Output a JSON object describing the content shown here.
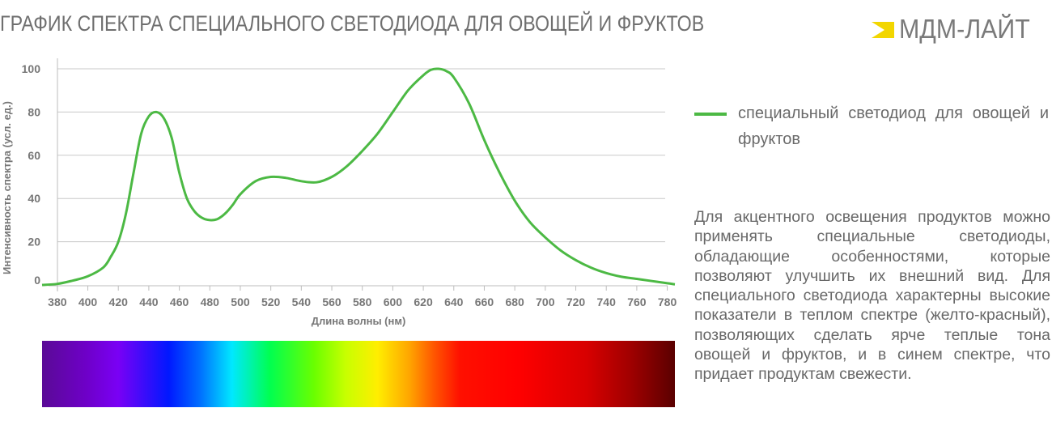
{
  "header": {
    "title": "ГРАФИК СПЕКТРА СПЕЦИАЛЬНОГО СВЕТОДИОДА ДЛЯ ОВОЩЕЙ И ФРУКТОВ",
    "logo_text": "МДМ-ЛАЙТ",
    "logo_icon": "mdm-light-logo-mark",
    "logo_color": "#f2d600"
  },
  "legend": {
    "label": "специальный светодиод  для овощей и фруктов",
    "color": "#4cb944"
  },
  "description": "Для акцентного освещения продуктов можно применять специальные светодиоды, обладающие особенностями, которые позволяют улучшить их внешний вид. Для специального светодиода характерны высокие показатели в теплом спектре (желто-красный), позволяющих сделать ярче теплые тона овощей и фруктов, и в синем спектре, что придает продуктам свежести.",
  "chart_data": {
    "type": "line",
    "title": "ГРАФИК СПЕКТРА СПЕЦИАЛЬНОГО СВЕТОДИОДА ДЛЯ ОВОЩЕЙ И ФРУКТОВ",
    "xlabel": "Длина волны (нм)",
    "ylabel": "Интенсивность спектра (усл. ед.)",
    "xlim": [
      370,
      785
    ],
    "ylim": [
      0,
      100
    ],
    "x_ticks": [
      380,
      400,
      420,
      440,
      460,
      480,
      500,
      520,
      540,
      560,
      580,
      600,
      620,
      640,
      660,
      680,
      700,
      720,
      740,
      760,
      780
    ],
    "y_ticks": [
      0,
      20,
      40,
      60,
      80,
      100
    ],
    "grid": "horizontal",
    "legend_position": "right",
    "series": [
      {
        "name": "специальный светодиод  для овощей и фруктов",
        "color": "#4cb944",
        "x": [
          370,
          380,
          390,
          400,
          410,
          415,
          420,
          425,
          430,
          435,
          440,
          445,
          450,
          455,
          460,
          465,
          470,
          475,
          480,
          485,
          490,
          495,
          500,
          510,
          520,
          530,
          540,
          550,
          560,
          570,
          580,
          590,
          600,
          610,
          620,
          625,
          630,
          635,
          640,
          650,
          660,
          670,
          680,
          690,
          700,
          710,
          720,
          730,
          740,
          750,
          760,
          770,
          780,
          785
        ],
        "y": [
          0,
          0.5,
          2,
          4,
          8,
          13,
          20,
          33,
          52,
          70,
          78,
          80,
          77,
          68,
          52,
          40,
          34,
          31,
          30,
          30.5,
          33,
          37,
          42,
          48,
          50,
          49.5,
          48,
          47.5,
          50,
          55,
          62,
          70,
          80,
          90,
          97,
          99.5,
          100,
          99,
          96,
          84,
          67,
          52,
          39,
          29,
          22,
          16,
          11.5,
          8,
          5.5,
          3.8,
          2.8,
          1.8,
          0.8,
          0.3
        ]
      }
    ],
    "spectrum_bar": {
      "range_nm": [
        370,
        785
      ]
    }
  }
}
